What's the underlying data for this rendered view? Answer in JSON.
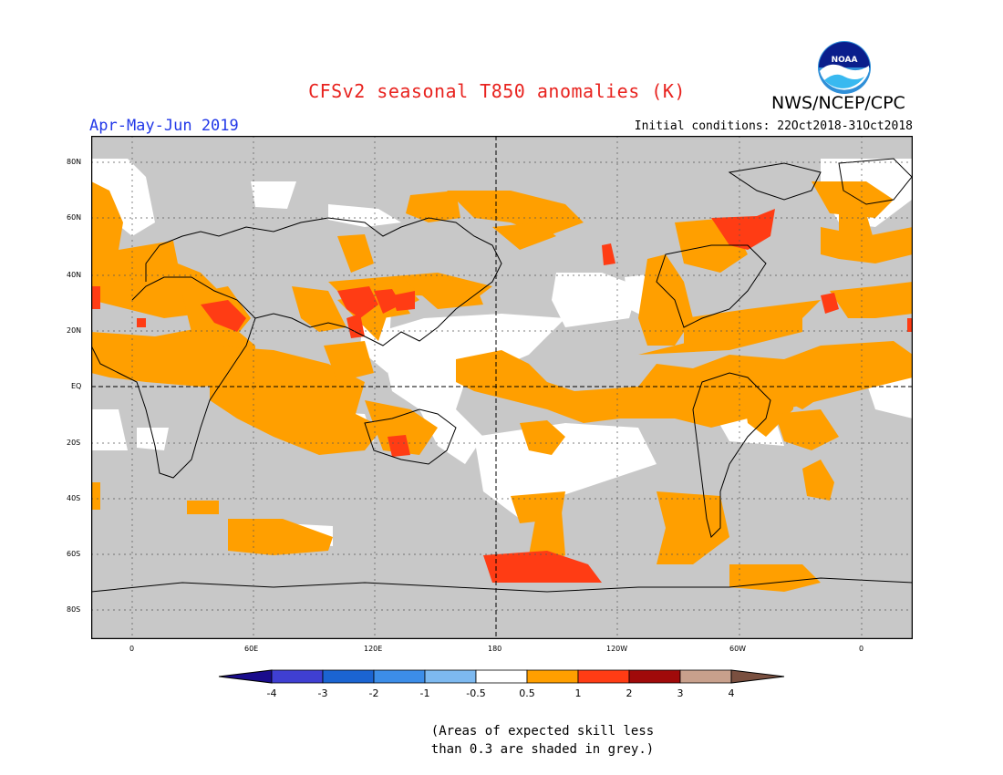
{
  "title": "CFSv2 seasonal T850 anomalies (K)",
  "organization": "NWS/NCEP/CPC",
  "logo_text": "NOAA",
  "season": "Apr-May-Jun 2019",
  "initial_conditions": "Initial conditions: 22Oct2018-31Oct2018",
  "lat_labels": [
    "80N",
    "60N",
    "40N",
    "20N",
    "EQ",
    "20S",
    "40S",
    "60S",
    "80S"
  ],
  "lon_labels": [
    "0",
    "60E",
    "120E",
    "180",
    "120W",
    "60W",
    "0"
  ],
  "colorbar": {
    "labels": [
      "-4",
      "-3",
      "-2",
      "-1",
      "-0.5",
      "0.5",
      "1",
      "2",
      "3",
      "4"
    ],
    "colors": [
      "#1a0c8c",
      "#3f3fd2",
      "#1b64d2",
      "#3c8de8",
      "#7db9f0",
      "#ffffff",
      "#ff9f00",
      "#ff3c14",
      "#a00a0a",
      "#c8a08c",
      "#7a5040"
    ]
  },
  "legend_colors": {
    "grey_low_skill": "#c8c8c8",
    "anomaly_0_5_to_1": "#ff9f00",
    "anomaly_1_to_2": "#ff3c14",
    "neutral": "#ffffff"
  },
  "note_line1": "(Areas of expected skill less",
  "note_line2": "than 0.3 are shaded in grey.)"
}
